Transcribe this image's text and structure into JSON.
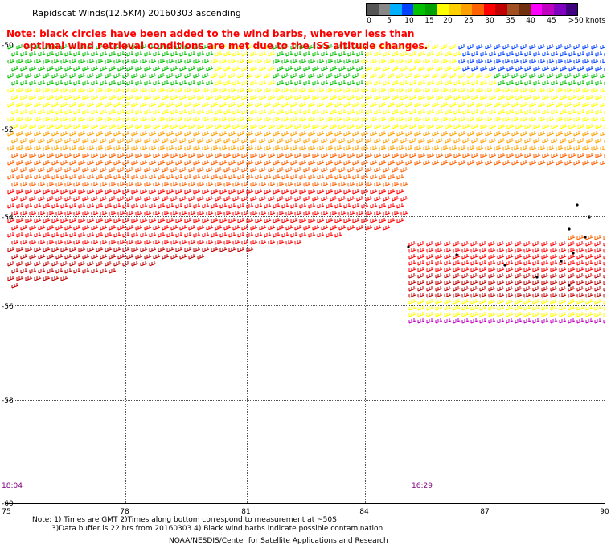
{
  "title": "Rapidscat Winds(12.5KM) 20160303 ascending",
  "legend": {
    "colors": [
      "#555555",
      "#888888",
      "#00b0ff",
      "#0040ff",
      "#00c000",
      "#00a000",
      "#ffff00",
      "#ffd000",
      "#ffa000",
      "#ff6000",
      "#ff0000",
      "#c00000",
      "#a05020",
      "#703010",
      "#ff00ff",
      "#c000c0",
      "#8000c0",
      "#400080"
    ],
    "labels": [
      "0",
      "5",
      "10",
      "15",
      "20",
      "25",
      "30",
      "35",
      "40",
      "45",
      ">50 knots"
    ]
  },
  "note": {
    "line1": "Note: black circles have been added to the wind barbs, wherever less than",
    "line2": "optimal wind retrieval conditions are met due to the ISS altitude changes."
  },
  "map": {
    "lat_labels": [
      "-50",
      "-52",
      "-54",
      "-56",
      "-58",
      "-60"
    ],
    "lon_labels": [
      "75",
      "78",
      "81",
      "84",
      "87",
      "90"
    ],
    "time_labels": [
      "18:04",
      "16:29"
    ]
  },
  "footer": {
    "line1": "Note: 1) Times are GMT 2)Times along bottom correspond to measurement at ~50S",
    "line2": "3)Data buffer is 22 hrs from 20160303 4) Black wind barbs indicate possible contamination",
    "line3": "NOAA/NESDIS/Center for Satellite Applications and Research"
  }
}
